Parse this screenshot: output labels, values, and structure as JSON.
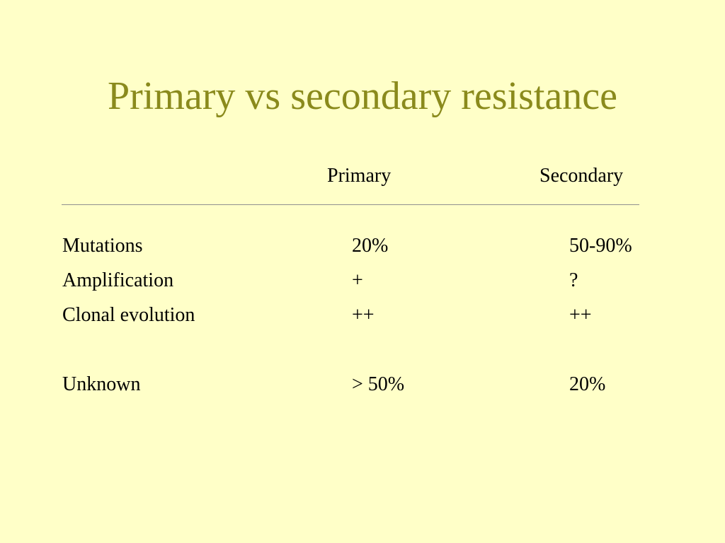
{
  "title": "Primary vs secondary resistance",
  "table": {
    "columns": [
      "Primary",
      "Secondary"
    ],
    "rows": [
      {
        "label": "Mutations",
        "primary": "20%",
        "secondary": "50-90%"
      },
      {
        "label": "Amplification",
        "primary": "+",
        "secondary": "?"
      },
      {
        "label": "Clonal evolution",
        "primary": "++",
        "secondary": "++"
      },
      {
        "label": "Unknown",
        "primary": "> 50%",
        "secondary": "20%"
      }
    ]
  },
  "colors": {
    "background": "#ffffc8",
    "title": "#8a8a1c",
    "text": "#000000",
    "rule": "#8f8f8f"
  }
}
